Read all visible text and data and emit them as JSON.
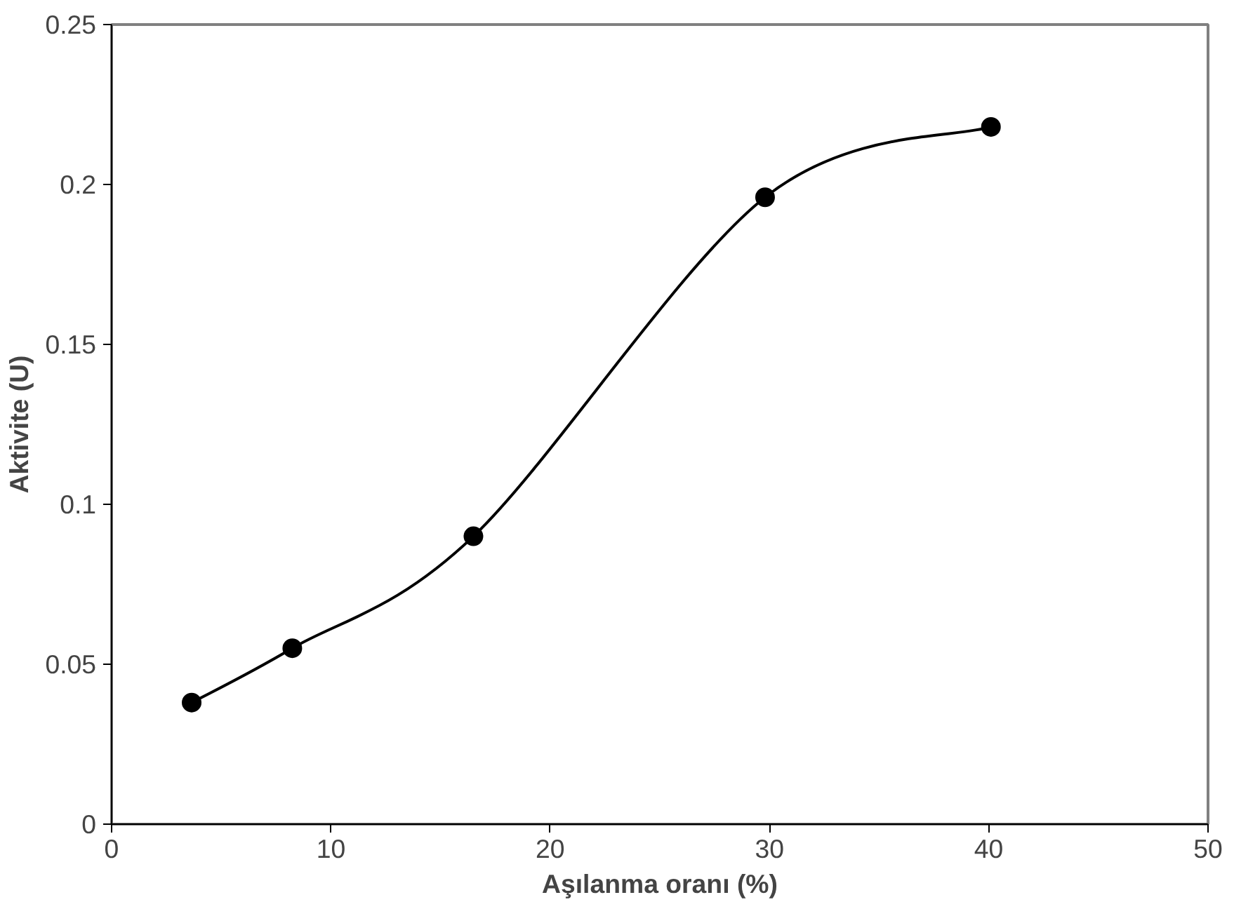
{
  "chart_data": {
    "type": "line",
    "xlabel": "Aşılanma oranı (%)",
    "ylabel": "Aktivite (U)",
    "x": [
      3.65,
      8.24,
      16.5,
      29.8,
      40.1
    ],
    "series": [
      {
        "color": "#000000",
        "values": [
          0.038,
          0.055,
          0.09,
          0.196,
          0.218
        ]
      }
    ],
    "xlim": [
      0,
      50
    ],
    "xticks": [
      0,
      10,
      20,
      30,
      40,
      50
    ],
    "ylim": [
      0,
      0.25
    ],
    "yticks": [
      0,
      0.05,
      0.1,
      0.15,
      0.2,
      0.25
    ],
    "grid": false,
    "marker": "circle",
    "line_style": "solid"
  }
}
